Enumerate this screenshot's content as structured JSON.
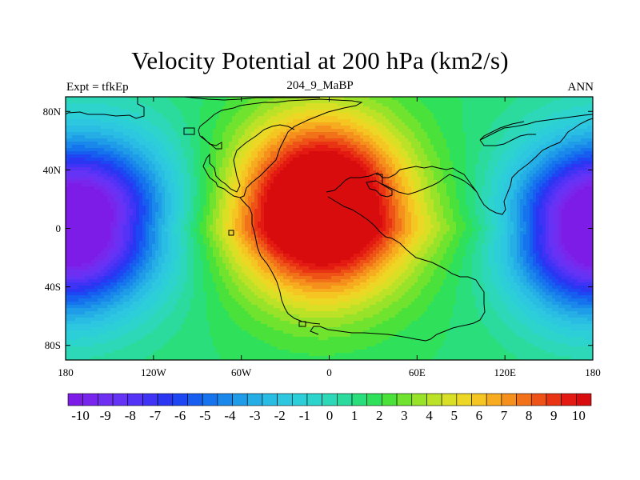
{
  "title": "Velocity Potential at 200 hPa (km2/s)",
  "subtitle_left": "Expt = tfkEp",
  "subtitle_center": "204_9_MaBP",
  "subtitle_right": "ANN",
  "chart_data": {
    "type": "heatmap",
    "projection": "cylindrical-equidistant",
    "x_ticks": [
      {
        "lon": -180,
        "label": "180"
      },
      {
        "lon": -120,
        "label": "120W"
      },
      {
        "lon": -60,
        "label": "60W"
      },
      {
        "lon": 0,
        "label": "0"
      },
      {
        "lon": 60,
        "label": "60E"
      },
      {
        "lon": 120,
        "label": "120E"
      },
      {
        "lon": 180,
        "label": "180"
      }
    ],
    "y_ticks": [
      {
        "lat": 80,
        "label": "80N"
      },
      {
        "lat": 40,
        "label": "40N"
      },
      {
        "lat": 0,
        "label": "0"
      },
      {
        "lat": -40,
        "label": "40S"
      },
      {
        "lat": -80,
        "label": "80S"
      }
    ],
    "xlim": [
      -180,
      180
    ],
    "ylim": [
      -90,
      90
    ],
    "field_extrema": {
      "max": {
        "lon": -5,
        "lat": 15,
        "value": 10.5
      },
      "min_east": {
        "lon": 175,
        "lat": 0,
        "value": -10.5
      },
      "min_west": {
        "lon": -180,
        "lat": 0,
        "value": -10.5
      }
    },
    "colorbar": {
      "min": -10.5,
      "max": 10.5,
      "step": 0.5,
      "labels": [
        "-10",
        "-9",
        "-8",
        "-7",
        "-6",
        "-5",
        "-4",
        "-3",
        "-2",
        "-1",
        "0",
        "1",
        "2",
        "3",
        "4",
        "5",
        "6",
        "7",
        "8",
        "9",
        "10"
      ],
      "label_values": [
        -10,
        -9,
        -8,
        -7,
        -6,
        -5,
        -4,
        -3,
        -2,
        -1,
        0,
        1,
        2,
        3,
        4,
        5,
        6,
        7,
        8,
        9,
        10
      ],
      "colors": [
        "#7c1ce6",
        "#7825ec",
        "#6f2ff2",
        "#6433f5",
        "#5433f6",
        "#3f33f5",
        "#2b36f2",
        "#1c47f2",
        "#165df0",
        "#1573ed",
        "#1a88ea",
        "#1e9ce8",
        "#25aee6",
        "#29bde4",
        "#2dc8e0",
        "#2ccfd8",
        "#2cd4cc",
        "#2cd8b8",
        "#2bdb9d",
        "#2bde7c",
        "#2ee05a",
        "#4ae23a",
        "#6fe32e",
        "#98e22a",
        "#bce227",
        "#d8df25",
        "#ecd824",
        "#f5c522",
        "#f7ac20",
        "#f5901d",
        "#f2721a",
        "#ee5217",
        "#e93414",
        "#e21a11",
        "#d80c0c"
      ]
    }
  }
}
